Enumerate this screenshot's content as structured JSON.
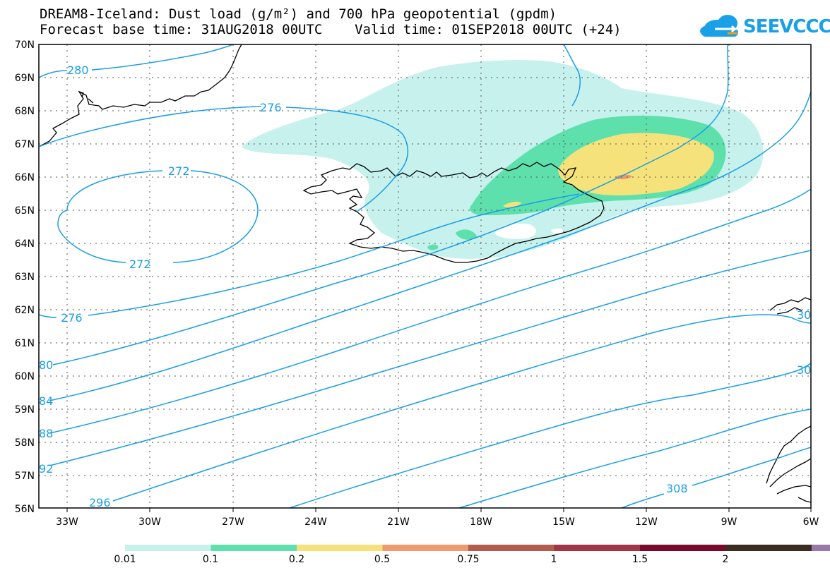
{
  "title_line1": "DREAM8-Iceland: Dust load (g/m²) and 700 hPa geopotential (gpdm)",
  "title_line2": "Forecast base time: 31AUG2018 00UTC    Valid time: 01SEP2018 00UTC (+24)",
  "logo_text": "SEEVCCC",
  "lat_labels": [
    "70N",
    "69N",
    "68N",
    "67N",
    "66N",
    "65N",
    "64N",
    "63N",
    "62N",
    "61N",
    "60N",
    "59N",
    "58N",
    "57N",
    "56N"
  ],
  "lon_labels": [
    "33W",
    "30W",
    "27W",
    "24W",
    "21W",
    "18W",
    "15W",
    "12W",
    "9W",
    "6W"
  ],
  "contour_labels": [
    "280",
    "276",
    "272",
    "272",
    "276",
    "80",
    "84",
    "88",
    "92",
    "296",
    "308",
    "30",
    "30"
  ],
  "colorbar": {
    "labels": [
      "0.01",
      "0.1",
      "0.2",
      "0.5",
      "0.75",
      "1",
      "1.5",
      "2"
    ],
    "colors": [
      "#c6f1ec",
      "#5ee0ad",
      "#f5e27a",
      "#ef9a6c",
      "#b35c4c",
      "#a13446",
      "#7a0a2c",
      "#3c2d22",
      "#9a79a8"
    ]
  },
  "colors": {
    "contour": "#1a9ee6",
    "dust_low": "#c6f1ec",
    "dust_mid": "#5ee0ad",
    "dust_high": "#f5e27a",
    "dust_max": "#ef9a6c"
  }
}
